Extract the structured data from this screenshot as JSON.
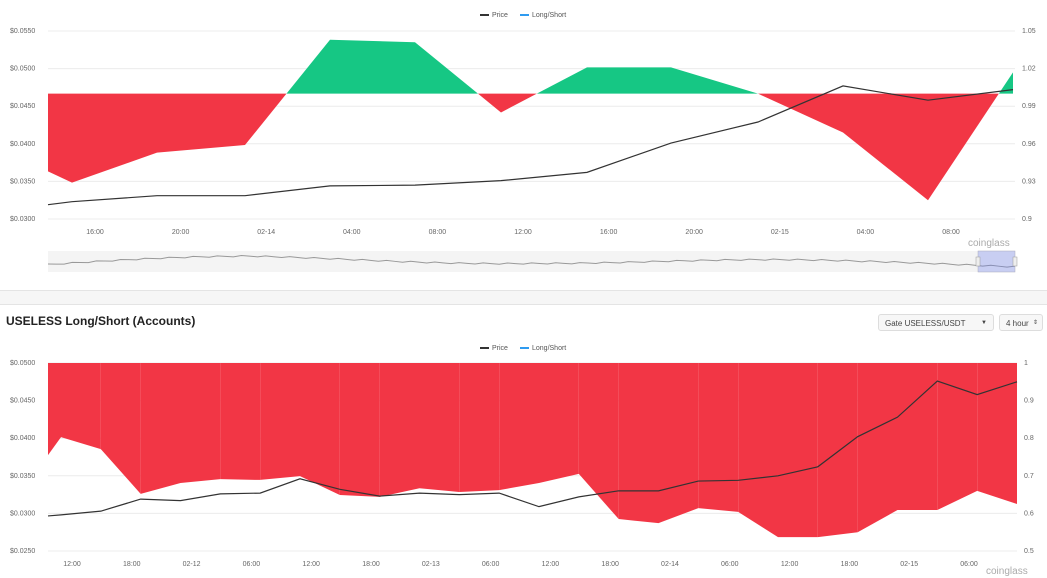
{
  "watermark": "coinglass",
  "section2": {
    "title": "USELESS Long/Short (Accounts)",
    "exchange_select": "Gate USELESS/USDT",
    "interval_select": "4 hour"
  },
  "colors": {
    "long": "#16c784",
    "short": "#f23645",
    "price": "#333333",
    "legend_ls": "#2f9bf0"
  },
  "chart_data": [
    {
      "type": "area",
      "legend": [
        "Price",
        "Long/Short"
      ],
      "legend_placement": "top-center",
      "left_axis": {
        "ticks": [
          "$0.0550",
          "$0.0500",
          "$0.0450",
          "$0.0400",
          "$0.0350",
          "$0.0300"
        ],
        "range": [
          0.03,
          0.055
        ]
      },
      "right_axis": {
        "ticks": [
          "1.05",
          "1.02",
          "0.99",
          "0.96",
          "0.93",
          "0.9"
        ],
        "range": [
          0.9,
          1.05
        ]
      },
      "baseline": 1.0,
      "x_labels": [
        "16:00",
        "20:00",
        "02-14",
        "04:00",
        "08:00",
        "12:00",
        "16:00",
        "20:00",
        "02-15",
        "04:00",
        "08:00"
      ],
      "x_count": 13,
      "x_index": [
        0,
        0.28,
        1.27,
        2.3,
        3.3,
        4.3,
        5.3,
        6.3,
        7.28,
        8.15,
        9.3,
        10.3,
        11.3
      ],
      "series": [
        {
          "name": "Long/Short",
          "values": [
            0.938,
            0.929,
            0.953,
            0.959,
            1.043,
            1.041,
            0.985,
            1.021,
            1.021,
            1.0,
            0.969,
            0.915,
            1.017
          ]
        },
        {
          "name": "Price",
          "values": [
            0.0319,
            0.0323,
            0.0331,
            0.0331,
            0.0344,
            0.0345,
            0.0351,
            0.0362,
            0.0401,
            0.0429,
            0.0477,
            0.0458,
            0.0472
          ]
        }
      ]
    },
    {
      "type": "area",
      "legend": [
        "Price",
        "Long/Short"
      ],
      "legend_placement": "top-center",
      "left_axis": {
        "ticks": [
          "$0.0500",
          "$0.0450",
          "$0.0400",
          "$0.0350",
          "$0.0300",
          "$0.0250"
        ],
        "range": [
          0.025,
          0.05
        ]
      },
      "right_axis": {
        "ticks": [
          "1",
          "0.9",
          "0.8",
          "0.7",
          "0.6",
          "0.5"
        ],
        "range": [
          0.5,
          1.0
        ]
      },
      "baseline": 1.0,
      "x_labels": [
        "12:00",
        "18:00",
        "02-12",
        "06:00",
        "12:00",
        "18:00",
        "02-13",
        "06:00",
        "12:00",
        "18:00",
        "02-14",
        "06:00",
        "12:00",
        "18:00",
        "02-15",
        "06:00"
      ],
      "series": [
        {
          "name": "Long/Short",
          "values": [
            0.755,
            0.803,
            0.771,
            0.652,
            0.681,
            0.691,
            0.689,
            0.699,
            0.649,
            0.644,
            0.667,
            0.657,
            0.662,
            0.681,
            0.705,
            0.585,
            0.574,
            0.614,
            0.604,
            0.537,
            0.537,
            0.55,
            0.609,
            0.609,
            0.66,
            0.625
          ]
        },
        {
          "name": "Price",
          "values": [
            0.02966,
            0.0298,
            0.0303,
            0.0319,
            0.0317,
            0.0326,
            0.0327,
            0.0346,
            0.0332,
            0.0323,
            0.0327,
            0.0325,
            0.0327,
            0.0309,
            0.0322,
            0.033,
            0.033,
            0.0343,
            0.0344,
            0.035,
            0.0362,
            0.0402,
            0.0428,
            0.0476,
            0.0458,
            0.0475
          ]
        }
      ]
    }
  ]
}
